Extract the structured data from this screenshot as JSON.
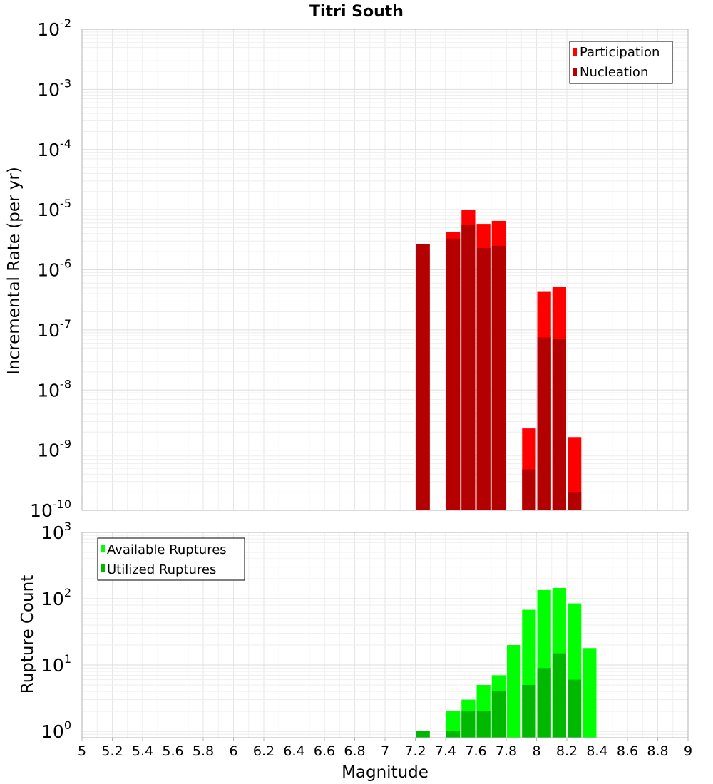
{
  "chart_data": [
    {
      "type": "bar",
      "title": "Titri South",
      "xlabel": "",
      "ylabel": "Incremental Rate (per yr)",
      "yscale": "log",
      "ylim": [
        1e-10,
        0.01
      ],
      "xlim": [
        5,
        9
      ],
      "grid": true,
      "legend_position": "top-right",
      "x": [
        7.25,
        7.45,
        7.55,
        7.65,
        7.75,
        7.95,
        8.05,
        8.15,
        8.25
      ],
      "series": [
        {
          "name": "Participation",
          "color": "#ff0000",
          "values": [
            2.7e-06,
            4.3e-06,
            1e-05,
            5.8e-06,
            6.5e-06,
            2.3e-09,
            4.4e-07,
            5.2e-07,
            1.65e-09
          ]
        },
        {
          "name": "Nucleation",
          "color": "#b30000",
          "values": [
            2.7e-06,
            3.3e-06,
            5.5e-06,
            2.3e-06,
            2.5e-06,
            4.8e-10,
            7.5e-08,
            7e-08,
            2e-10
          ]
        }
      ],
      "y_ticks": [
        {
          "base": "10",
          "exp": "-2"
        },
        {
          "base": "10",
          "exp": "-3"
        },
        {
          "base": "10",
          "exp": "-4"
        },
        {
          "base": "10",
          "exp": "-5"
        },
        {
          "base": "10",
          "exp": "-6"
        },
        {
          "base": "10",
          "exp": "-7"
        },
        {
          "base": "10",
          "exp": "-8"
        },
        {
          "base": "10",
          "exp": "-9"
        },
        {
          "base": "10",
          "exp": "-10"
        }
      ]
    },
    {
      "type": "bar",
      "title": "",
      "xlabel": "Magnitude",
      "ylabel": "Rupture Count",
      "yscale": "log",
      "ylim": [
        0.8,
        1000
      ],
      "xlim": [
        5,
        9
      ],
      "grid": true,
      "legend_position": "top-left",
      "x": [
        7.25,
        7.45,
        7.55,
        7.65,
        7.75,
        7.85,
        7.95,
        8.05,
        8.15,
        8.25,
        8.35
      ],
      "series": [
        {
          "name": "Available Ruptures",
          "color": "#00ff00",
          "values": [
            1,
            2,
            3,
            5,
            7,
            20,
            68,
            135,
            145,
            85,
            18
          ]
        },
        {
          "name": "Utilized Ruptures",
          "color": "#00b800",
          "values": [
            1,
            1,
            2,
            2,
            4,
            0,
            5,
            9,
            15,
            6,
            0
          ]
        }
      ],
      "y_ticks": [
        {
          "base": "10",
          "exp": "3"
        },
        {
          "base": "10",
          "exp": "2"
        },
        {
          "base": "10",
          "exp": "1"
        },
        {
          "base": "10",
          "exp": "0"
        }
      ]
    }
  ],
  "x_ticks": [
    "5",
    "5.2",
    "5.4",
    "5.6",
    "5.8",
    "6",
    "6.2",
    "6.4",
    "6.6",
    "6.8",
    "7",
    "7.2",
    "7.4",
    "7.6",
    "7.8",
    "8",
    "8.2",
    "8.4",
    "8.6",
    "8.8",
    "9"
  ]
}
